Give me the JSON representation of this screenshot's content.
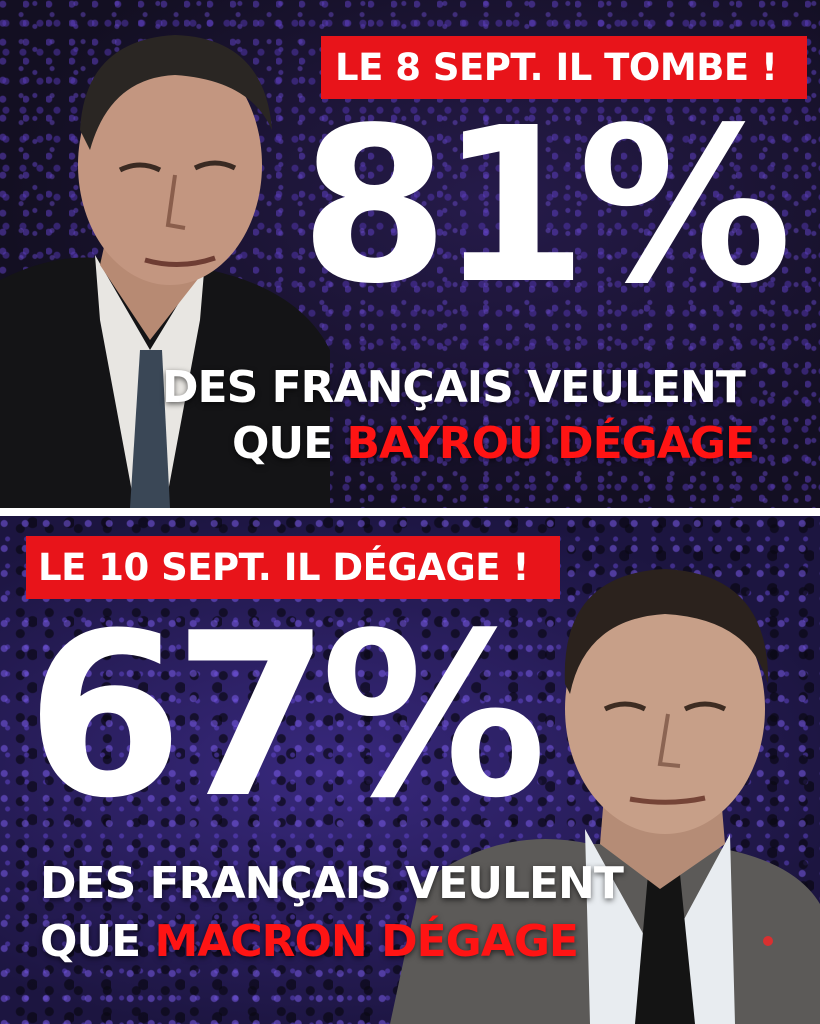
{
  "top": {
    "banner": "LE 8 SEPT. IL TOMBE !",
    "percent": "81%",
    "line1": "DES FRANÇAIS VEULENT",
    "line2_prefix": "QUE ",
    "line2_highlight": "BAYROU DÉGAGE"
  },
  "bottom": {
    "banner": "LE 10 SEPT. IL DÉGAGE !",
    "percent": "67%",
    "line1": "DES FRANÇAIS VEULENT",
    "line2_prefix": "QUE ",
    "line2_highlight": "MACRON DÉGAGE"
  },
  "colors": {
    "banner_red": "#e8141a",
    "highlight_red": "#ff1414",
    "text_white": "#ffffff",
    "background_purple": "#1c1540"
  }
}
